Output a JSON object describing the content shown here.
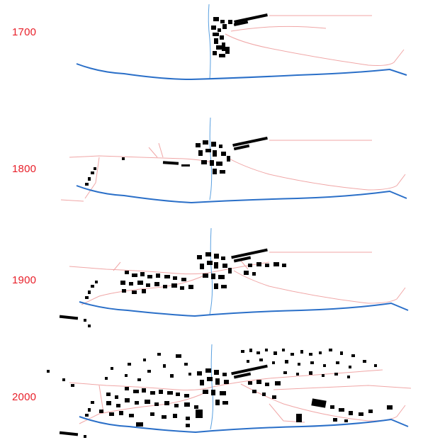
{
  "colors": {
    "year_label": "#e8202a",
    "road": "#f0a6a6",
    "river": "#2a6fc8",
    "stream": "#5aa0e0",
    "building": "#000000",
    "background": "#ffffff"
  },
  "panels": [
    {
      "year": "1700"
    },
    {
      "year": "1800"
    },
    {
      "year": "1900"
    },
    {
      "year": "2000"
    }
  ]
}
